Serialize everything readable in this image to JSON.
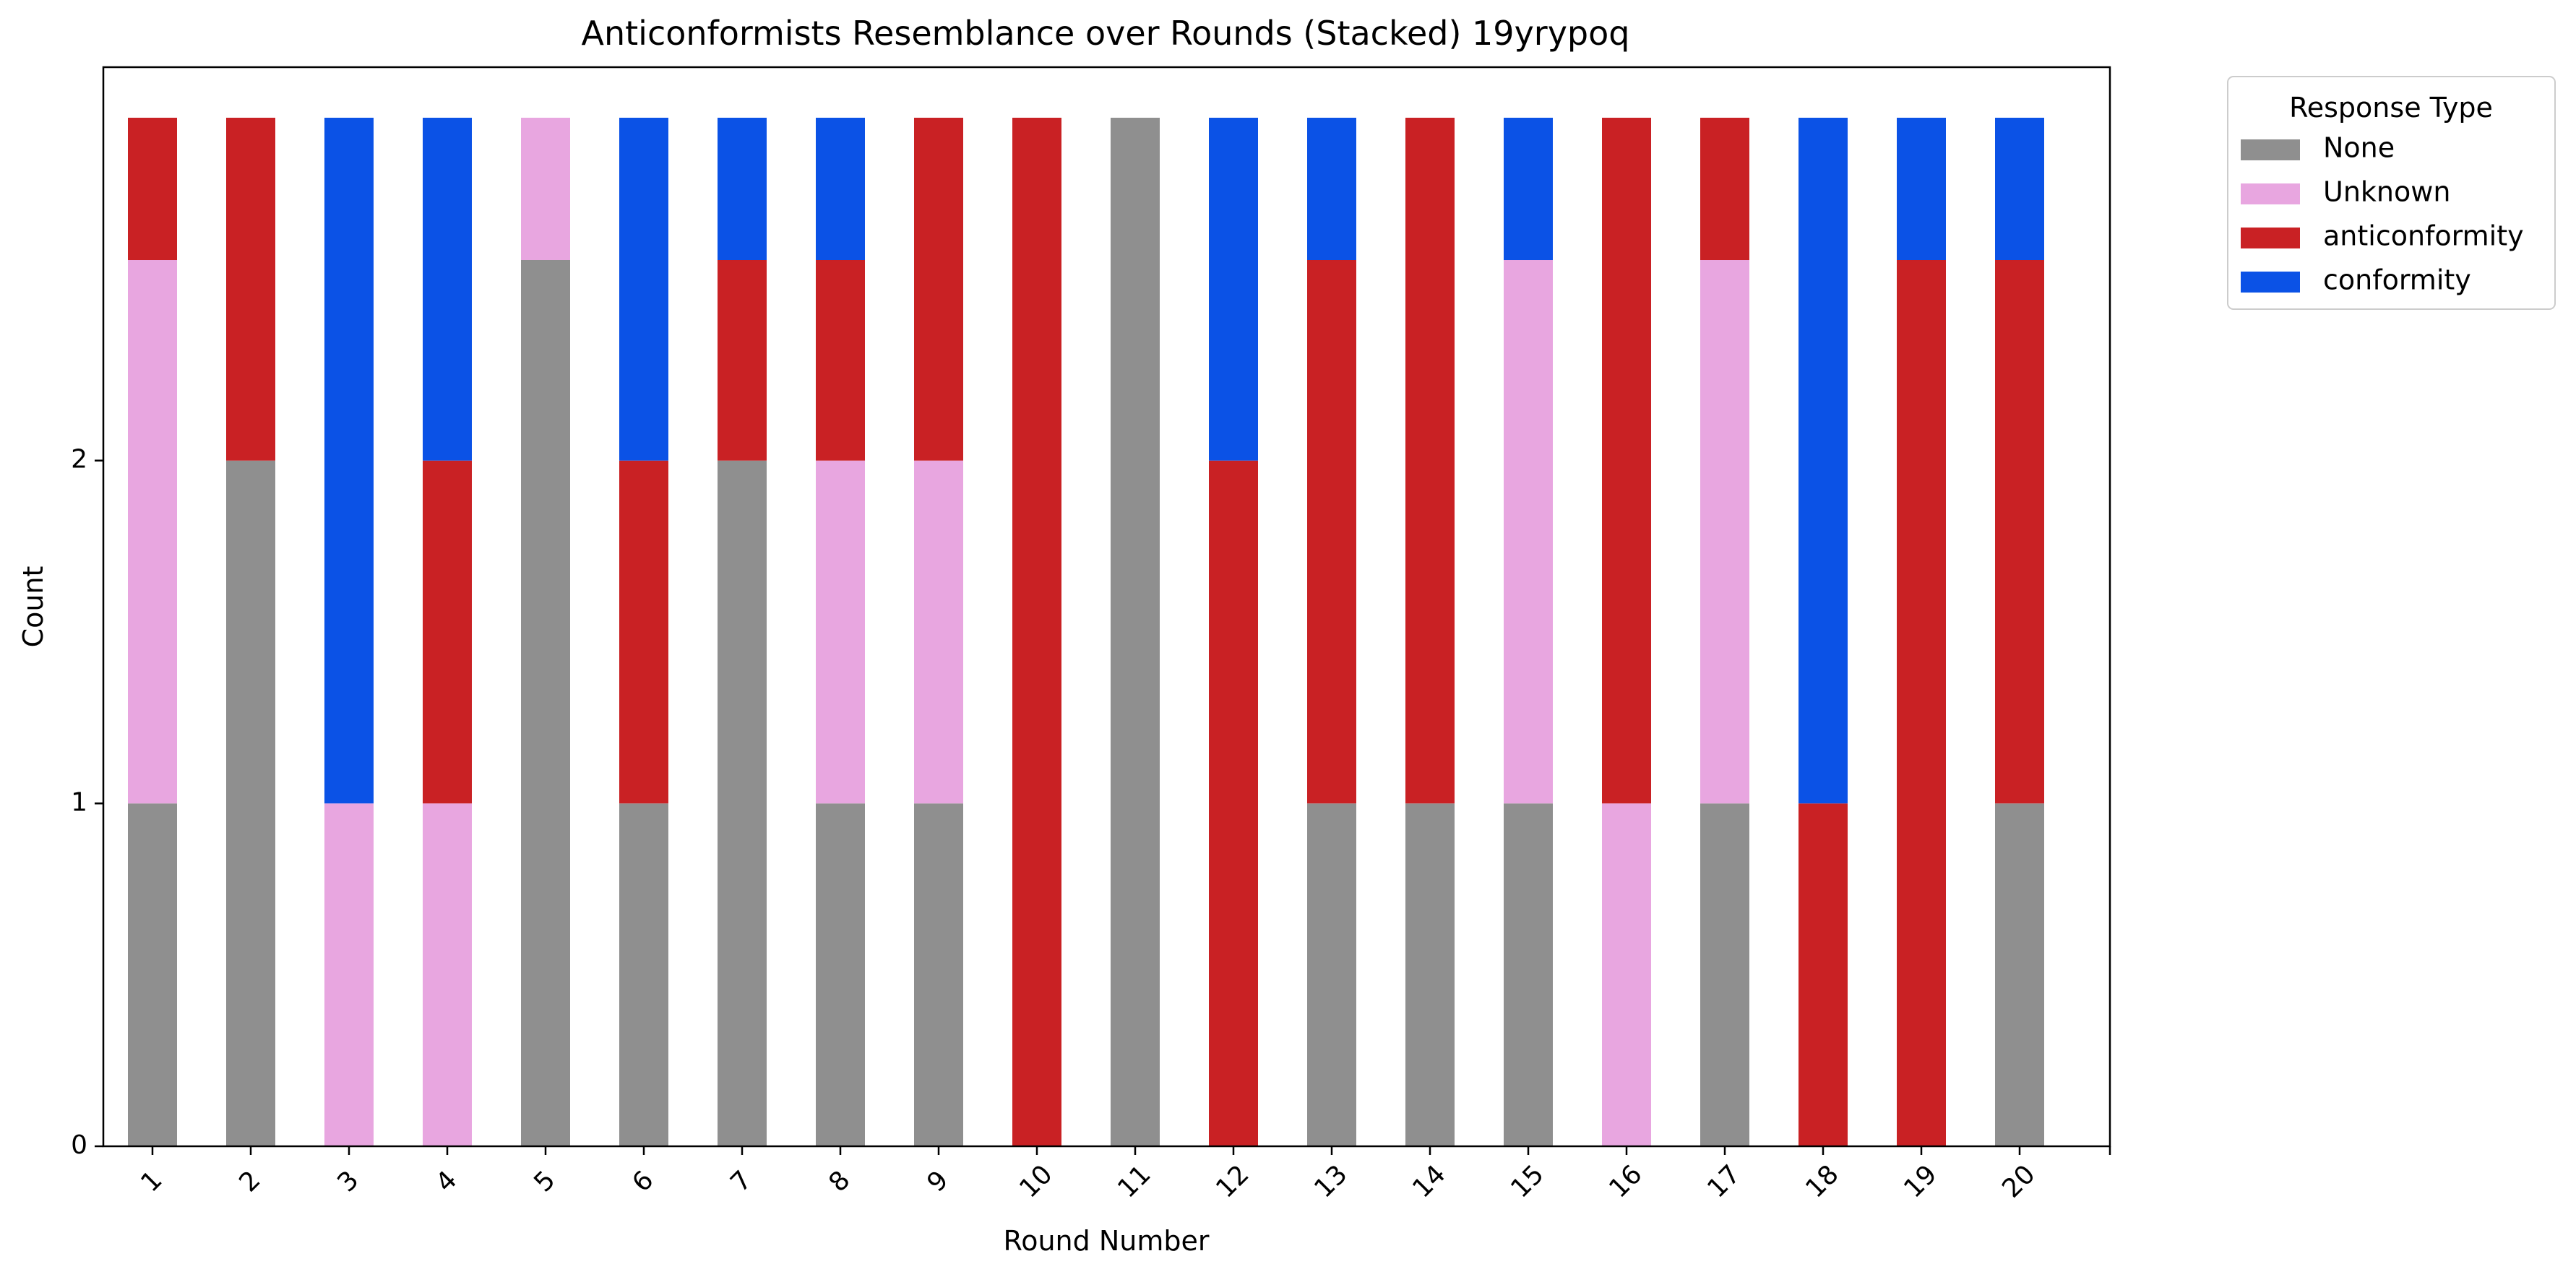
{
  "chart_data": {
    "type": "bar",
    "stacked": true,
    "title": "Anticonformists Resemblance over Rounds (Stacked) 19yrypoq",
    "xlabel": "Round Number",
    "ylabel": "Count",
    "y_scale": "log",
    "ylim": [
      0,
      4
    ],
    "y_ticks": [
      0,
      1,
      2
    ],
    "y_tick_labels": [
      "0",
      "1",
      "2"
    ],
    "grid": false,
    "categories": [
      "1",
      "2",
      "3",
      "4",
      "5",
      "6",
      "7",
      "8",
      "9",
      "10",
      "11",
      "12",
      "13",
      "14",
      "15",
      "16",
      "17",
      "18",
      "19",
      "20"
    ],
    "series": [
      {
        "name": "None",
        "color": "#8f8f8f",
        "values": [
          1,
          2,
          0,
          0,
          3,
          1,
          2,
          1,
          1,
          0,
          4,
          0,
          1,
          1,
          1,
          0,
          1,
          0,
          0,
          1
        ]
      },
      {
        "name": "Unknown",
        "color": "#e8a6e0",
        "values": [
          2,
          0,
          1,
          1,
          1,
          0,
          0,
          1,
          1,
          0,
          0,
          0,
          0,
          0,
          2,
          1,
          2,
          0,
          0,
          0
        ]
      },
      {
        "name": "anticonformity",
        "color": "#c92124",
        "values": [
          1,
          2,
          0,
          1,
          0,
          1,
          1,
          1,
          2,
          4,
          0,
          2,
          2,
          3,
          0,
          3,
          1,
          1,
          3,
          2
        ]
      },
      {
        "name": "conformity",
        "color": "#0b52e6",
        "values": [
          0,
          0,
          3,
          2,
          0,
          2,
          1,
          1,
          0,
          0,
          0,
          2,
          1,
          0,
          1,
          0,
          0,
          3,
          1,
          1
        ]
      }
    ],
    "legend": {
      "title": "Response Type",
      "placement": "outside-top-right"
    }
  }
}
